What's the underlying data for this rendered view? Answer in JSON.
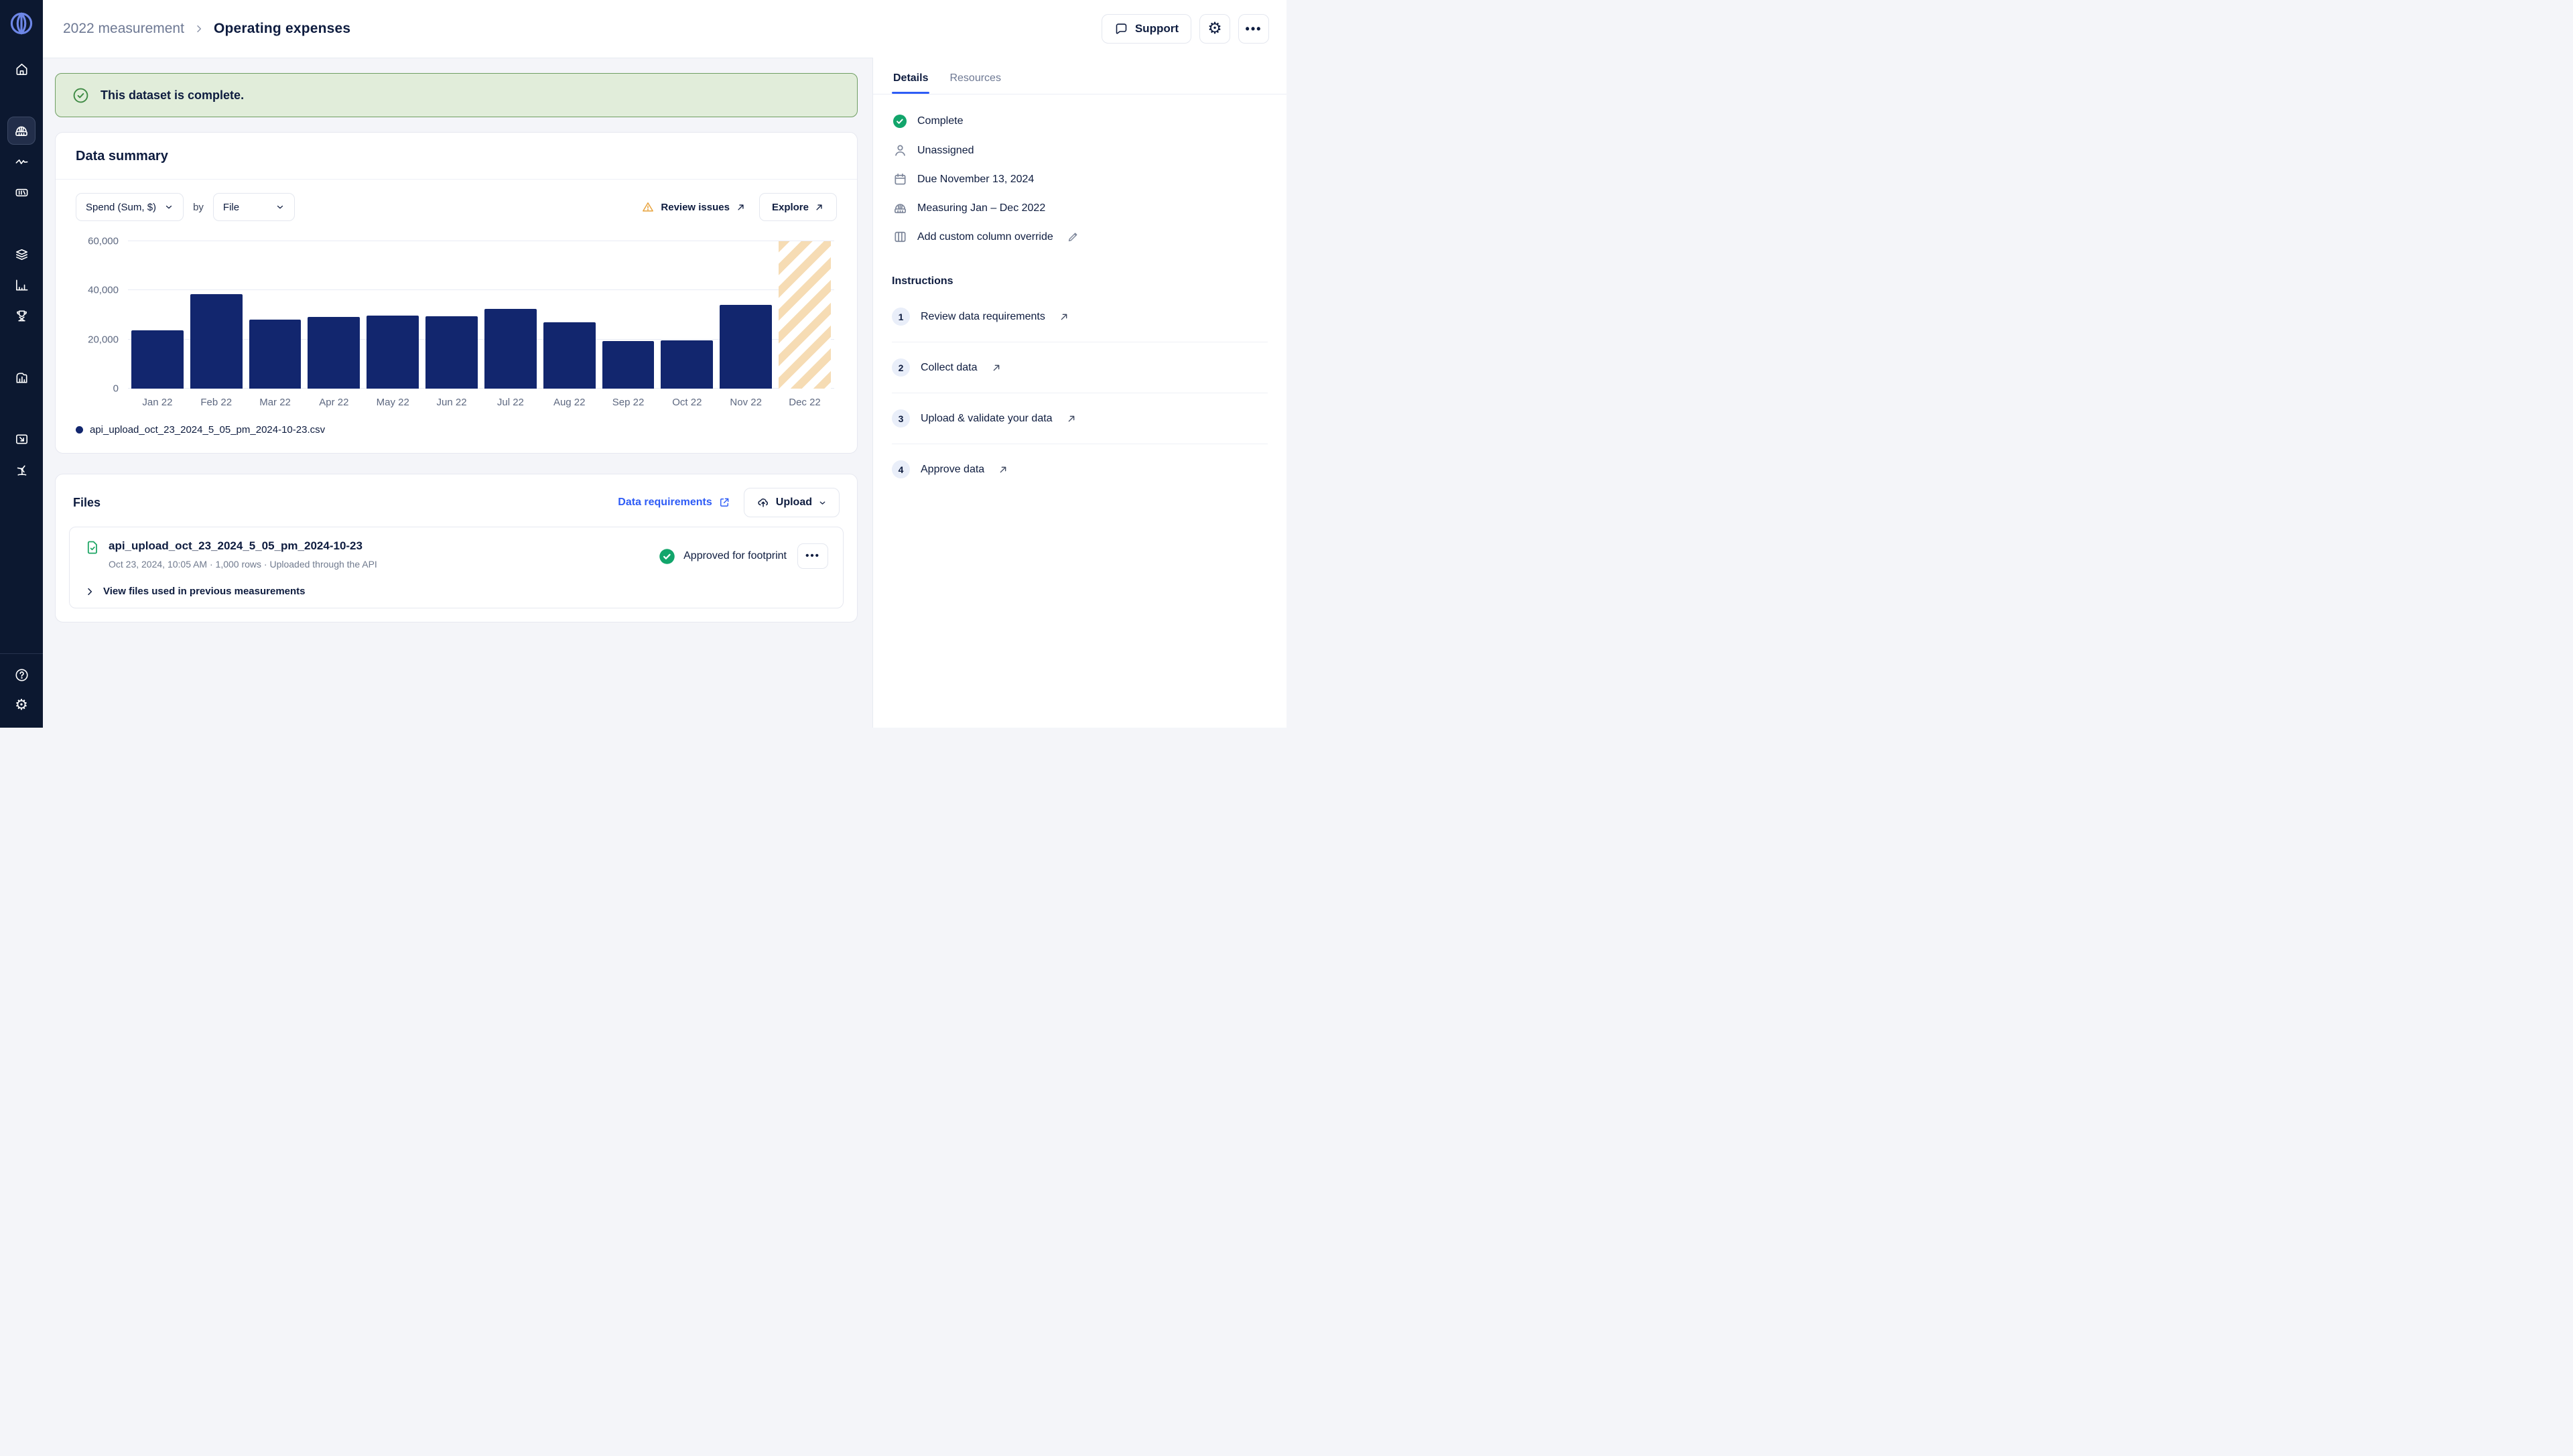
{
  "header": {
    "breadcrumb": [
      "2022 measurement",
      "Operating expenses"
    ],
    "support_label": "Support"
  },
  "sidebar": {
    "items": [
      "home",
      "measure",
      "activity",
      "reports",
      "layers",
      "analytics",
      "benchmarks",
      "facilities",
      "export",
      "clean-power",
      "help",
      "settings"
    ]
  },
  "banner": {
    "text": "This dataset is complete."
  },
  "data_summary": {
    "title": "Data summary",
    "metric_dropdown": "Spend (Sum, $)",
    "by_label": "by",
    "group_dropdown": "File",
    "review_issues_label": "Review issues",
    "explore_label": "Explore"
  },
  "chart_data": {
    "type": "bar",
    "title": "Spend (Sum, $) by File",
    "categories": [
      "Jan 22",
      "Feb 22",
      "Mar 22",
      "Apr 22",
      "May 22",
      "Jun 22",
      "Jul 22",
      "Aug 22",
      "Sep 22",
      "Oct 22",
      "Nov 22",
      "Dec 22"
    ],
    "series": [
      {
        "name": "api_upload_oct_23_2024_5_05_pm_2024-10-23.csv",
        "values": [
          23700,
          38500,
          28000,
          29300,
          29600,
          29500,
          32400,
          26900,
          19500,
          19700,
          34200,
          null
        ]
      }
    ],
    "missing_months_hatched": [
      "Dec 22"
    ],
    "ylim": [
      0,
      60000
    ],
    "yticks": [
      "0",
      "20,000",
      "40,000",
      "60,000"
    ],
    "grid": "horizontal",
    "legend_position": "bottom-left",
    "bar_color": "#12266E",
    "hatch_color": "#F6DCB4"
  },
  "files": {
    "title": "Files",
    "data_requirements_label": "Data requirements",
    "upload_label": "Upload",
    "file": {
      "name": "api_upload_oct_23_2024_5_05_pm_2024-10-23",
      "meta": "Oct 23, 2024, 10:05 AM · 1,000 rows · Uploaded through the API",
      "status": "Approved for footprint"
    },
    "previous_label": "View files used in previous measurements"
  },
  "details_panel": {
    "tabs": [
      "Details",
      "Resources"
    ],
    "active_tab": "Details",
    "items": [
      {
        "icon": "check-circle",
        "label": "Complete"
      },
      {
        "icon": "person",
        "label": "Unassigned"
      },
      {
        "icon": "calendar",
        "label": "Due November 13, 2024"
      },
      {
        "icon": "measure",
        "label": "Measuring Jan – Dec 2022"
      },
      {
        "icon": "columns",
        "label": "Add custom column override"
      }
    ],
    "instructions": {
      "title": "Instructions",
      "steps": [
        {
          "num": "1",
          "label": "Review data requirements"
        },
        {
          "num": "2",
          "label": "Collect data"
        },
        {
          "num": "3",
          "label": "Upload & validate your data"
        },
        {
          "num": "4",
          "label": "Approve data"
        }
      ]
    }
  },
  "colors": {
    "accent_blue": "#2E5CF6",
    "navy_text": "#0E1C3F",
    "sidebar_bg": "#0C1830",
    "banner_bg": "#E1EDDA",
    "banner_border": "#6F9E63",
    "success_green": "#12A56B",
    "warning_orange": "#E8A33D",
    "bar_navy": "#12266E",
    "hatch_tan": "#F6DCB4"
  }
}
